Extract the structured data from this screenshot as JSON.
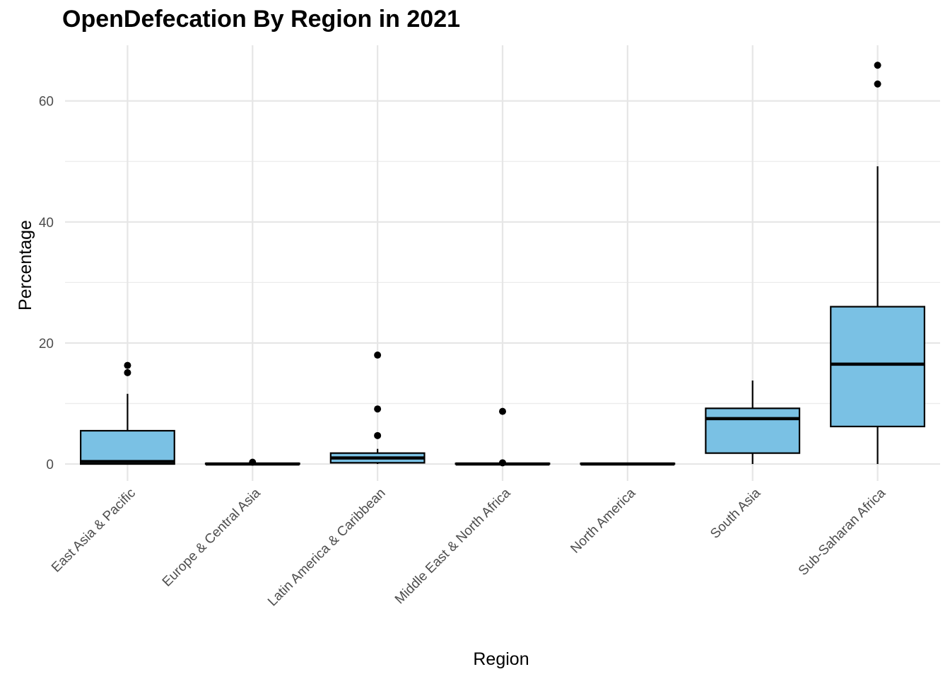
{
  "chart_data": {
    "type": "box",
    "title": "OpenDefecation By Region in 2021",
    "xlabel": "Region",
    "ylabel": "Percentage",
    "ylim": [
      -2.8,
      69.2
    ],
    "y_ticks": [
      0,
      20,
      40,
      60
    ],
    "grid": true,
    "legend": "none",
    "box_fill": "#7AC1E4",
    "box_stroke": "#000000",
    "categories": [
      "East Asia & Pacific",
      "Europe & Central Asia",
      "Latin America & Caribbean",
      "Middle East & North Africa",
      "North America",
      "South Asia",
      "Sub-Saharan Africa"
    ],
    "boxes": [
      {
        "category": "East Asia & Pacific",
        "lower_whisker": 0.0,
        "q1": 0.0,
        "median": 0.4,
        "q3": 5.5,
        "upper_whisker": 11.6,
        "outliers": [
          15.1,
          16.3
        ]
      },
      {
        "category": "Europe & Central Asia",
        "lower_whisker": 0.0,
        "q1": 0.0,
        "median": 0.0,
        "q3": 0.1,
        "upper_whisker": 0.1,
        "outliers": [
          0.3
        ]
      },
      {
        "category": "Latin America & Caribbean",
        "lower_whisker": 0.0,
        "q1": 0.2,
        "median": 1.0,
        "q3": 1.8,
        "upper_whisker": 2.5,
        "outliers": [
          4.7,
          9.1,
          18.0
        ]
      },
      {
        "category": "Middle East & North Africa",
        "lower_whisker": 0.0,
        "q1": 0.0,
        "median": 0.0,
        "q3": 0.1,
        "upper_whisker": 0.1,
        "outliers": [
          0.2,
          8.7
        ]
      },
      {
        "category": "North America",
        "lower_whisker": 0.0,
        "q1": 0.0,
        "median": 0.0,
        "q3": 0.1,
        "upper_whisker": 0.1,
        "outliers": []
      },
      {
        "category": "South Asia",
        "lower_whisker": 0.0,
        "q1": 1.8,
        "median": 7.5,
        "q3": 9.2,
        "upper_whisker": 13.8,
        "outliers": []
      },
      {
        "category": "Sub-Saharan Africa",
        "lower_whisker": 0.0,
        "q1": 6.2,
        "median": 16.5,
        "q3": 26.0,
        "upper_whisker": 49.2,
        "outliers": [
          62.8,
          65.9
        ]
      }
    ]
  }
}
